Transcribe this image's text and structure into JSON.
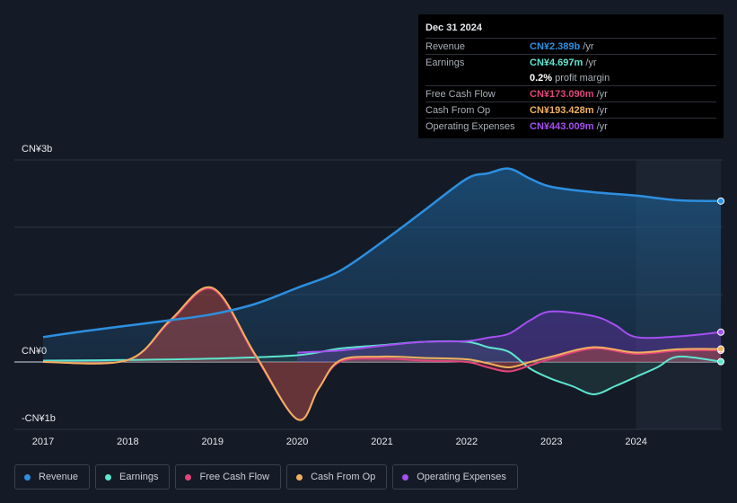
{
  "tooltip": {
    "date": "Dec 31 2024",
    "rows": [
      {
        "label": "Revenue",
        "value": "CN¥2.389b",
        "unit": "/yr",
        "color": "#2d8fe0"
      },
      {
        "label": "Earnings",
        "value": "CN¥4.697m",
        "unit": "/yr",
        "color": "#5ee6cf"
      },
      {
        "label": "",
        "value": "0.2%",
        "unit": "profit margin",
        "color": "#ffffff"
      },
      {
        "label": "Free Cash Flow",
        "value": "CN¥173.090m",
        "unit": "/yr",
        "color": "#e0457b"
      },
      {
        "label": "Cash From Op",
        "value": "CN¥193.428m",
        "unit": "/yr",
        "color": "#f0b060"
      },
      {
        "label": "Operating Expenses",
        "value": "CN¥443.009m",
        "unit": "/yr",
        "color": "#a550f0"
      }
    ]
  },
  "legend": [
    {
      "label": "Revenue",
      "color": "#2d8fe0"
    },
    {
      "label": "Earnings",
      "color": "#5ee6cf"
    },
    {
      "label": "Free Cash Flow",
      "color": "#e0457b"
    },
    {
      "label": "Cash From Op",
      "color": "#f0b060"
    },
    {
      "label": "Operating Expenses",
      "color": "#a550f0"
    }
  ],
  "chart_data": {
    "type": "area",
    "title": "",
    "xlabel": "",
    "ylabel": "",
    "xlim": [
      2017,
      2025
    ],
    "ylim": [
      -1,
      3
    ],
    "y_tick_labels": [
      {
        "value": 3,
        "label": "CN¥3b"
      },
      {
        "value": 0,
        "label": "CN¥0"
      },
      {
        "value": -1,
        "label": "-CN¥1b"
      }
    ],
    "x_tick_labels": [
      "2017",
      "2018",
      "2019",
      "2020",
      "2021",
      "2022",
      "2023",
      "2024"
    ],
    "forecast_shade_from": 2024.0,
    "series": [
      {
        "name": "Revenue",
        "color": "#2d8fe0",
        "x": [
          2017.0,
          2017.5,
          2018.0,
          2018.5,
          2019.0,
          2019.5,
          2020.0,
          2020.5,
          2021.0,
          2021.5,
          2022.0,
          2022.25,
          2022.5,
          2022.75,
          2023.0,
          2023.5,
          2024.0,
          2024.5,
          2025.0
        ],
        "y": [
          0.37,
          0.46,
          0.54,
          0.62,
          0.71,
          0.86,
          1.1,
          1.35,
          1.78,
          2.25,
          2.72,
          2.8,
          2.87,
          2.72,
          2.6,
          2.52,
          2.47,
          2.4,
          2.389
        ]
      },
      {
        "name": "Earnings",
        "color": "#5ee6cf",
        "x": [
          2017.0,
          2018.0,
          2019.0,
          2020.0,
          2020.5,
          2021.0,
          2021.5,
          2022.0,
          2022.25,
          2022.5,
          2022.75,
          2023.0,
          2023.25,
          2023.5,
          2023.75,
          2024.0,
          2024.25,
          2024.5,
          2025.0
        ],
        "y": [
          0.02,
          0.03,
          0.05,
          0.1,
          0.2,
          0.25,
          0.3,
          0.3,
          0.22,
          0.15,
          -0.1,
          -0.25,
          -0.36,
          -0.48,
          -0.36,
          -0.22,
          -0.08,
          0.08,
          0.005
        ]
      },
      {
        "name": "Free Cash Flow",
        "color": "#e0457b",
        "x": [
          2017.0,
          2018.0,
          2018.5,
          2019.0,
          2019.5,
          2020.0,
          2020.25,
          2020.5,
          2021.0,
          2021.5,
          2022.0,
          2022.25,
          2022.5,
          2022.75,
          2023.0,
          2023.5,
          2024.0,
          2024.5,
          2025.0
        ],
        "y": [
          0.0,
          0.03,
          0.6,
          1.08,
          0.1,
          -0.85,
          -0.4,
          0.0,
          0.05,
          0.02,
          0.0,
          -0.08,
          -0.14,
          -0.05,
          0.05,
          0.2,
          0.12,
          0.17,
          0.173
        ]
      },
      {
        "name": "Cash From Op",
        "color": "#f0b060",
        "x": [
          2017.0,
          2018.0,
          2018.5,
          2019.0,
          2019.5,
          2020.0,
          2020.25,
          2020.5,
          2021.0,
          2021.5,
          2022.0,
          2022.25,
          2022.5,
          2022.75,
          2023.0,
          2023.5,
          2024.0,
          2024.5,
          2025.0
        ],
        "y": [
          0.0,
          0.03,
          0.62,
          1.1,
          0.12,
          -0.85,
          -0.4,
          0.02,
          0.08,
          0.06,
          0.04,
          -0.02,
          -0.08,
          0.0,
          0.08,
          0.22,
          0.14,
          0.19,
          0.193
        ]
      },
      {
        "name": "Operating Expenses",
        "color": "#a550f0",
        "x": [
          2020.0,
          2020.5,
          2021.0,
          2021.5,
          2022.0,
          2022.25,
          2022.5,
          2022.75,
          2023.0,
          2023.5,
          2023.75,
          2024.0,
          2024.5,
          2025.0
        ],
        "y": [
          0.14,
          0.17,
          0.24,
          0.3,
          0.31,
          0.36,
          0.42,
          0.62,
          0.75,
          0.68,
          0.55,
          0.37,
          0.38,
          0.443
        ]
      }
    ]
  }
}
